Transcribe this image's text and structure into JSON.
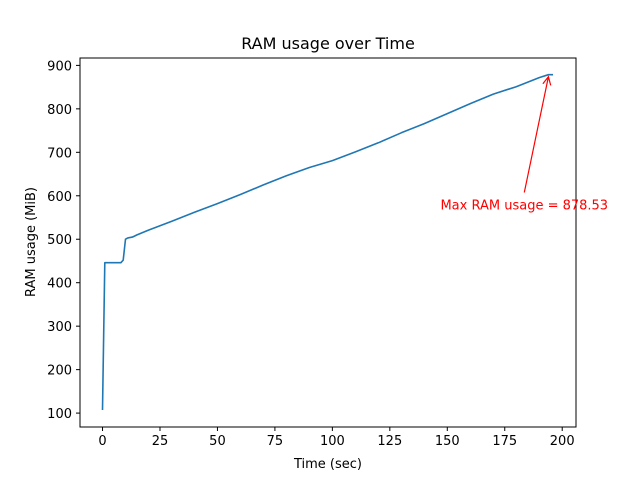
{
  "chart_data": {
    "type": "line",
    "title": "RAM usage over Time",
    "xlabel": "Time (sec)",
    "ylabel": "RAM usage (MiB)",
    "xlim": [
      -9.8,
      206.0
    ],
    "ylim": [
      68.0,
      917.0
    ],
    "xticks": [
      0,
      25,
      50,
      75,
      100,
      125,
      150,
      175,
      200
    ],
    "yticks": [
      100,
      200,
      300,
      400,
      500,
      600,
      700,
      800,
      900
    ],
    "grid": false,
    "legend": "none",
    "series": [
      {
        "color": "#1f77b4",
        "x": [
          0,
          1,
          2,
          5,
          8,
          9,
          10,
          11,
          13,
          15,
          20,
          30,
          40,
          50,
          60,
          70,
          80,
          90,
          100,
          110,
          120,
          130,
          140,
          150,
          160,
          170,
          180,
          190,
          194,
          196
        ],
        "y": [
          107,
          446,
          446,
          446,
          446,
          452,
          500,
          503,
          505,
          510,
          521,
          541,
          562,
          582,
          603,
          625,
          646,
          665,
          681,
          701,
          722,
          745,
          766,
          789,
          812,
          834,
          851,
          872,
          878.53,
          878.53
        ]
      }
    ],
    "annotations": [
      {
        "text": "Max RAM usage = 878.53",
        "color": "#ff0000",
        "point": [
          194,
          878.53
        ],
        "text_at": [
          183.5,
          580
        ]
      }
    ]
  }
}
